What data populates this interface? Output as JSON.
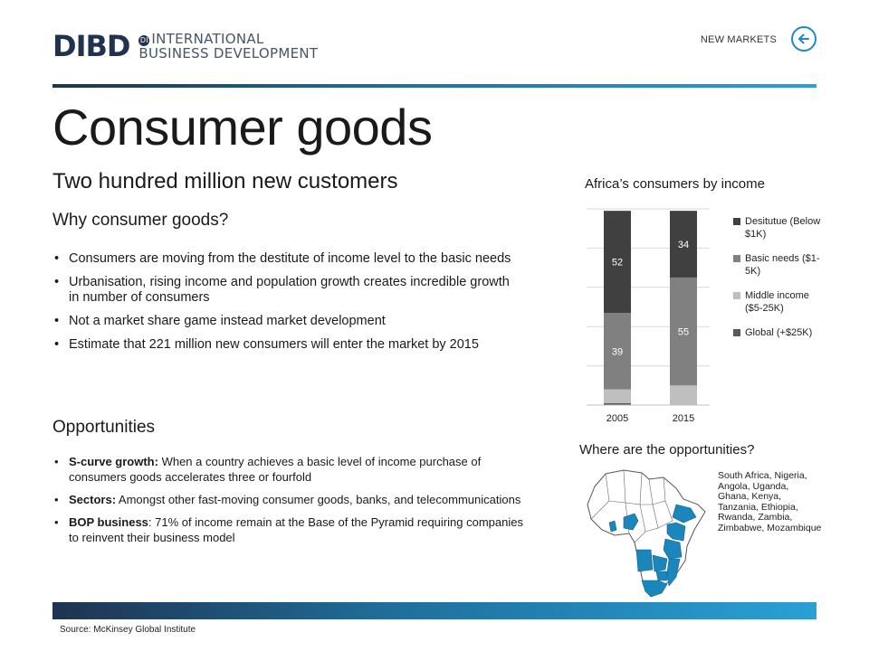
{
  "header": {
    "logo_mark": "DIBD",
    "logo_line1": "INTERNATIONAL",
    "logo_line2": "BUSINESS DEVELOPMENT",
    "logo_badge": "DI",
    "section": "NEW MARKETS",
    "back_icon": "arrow-left-circle-icon",
    "accent_color": "#1d8bc2"
  },
  "title": "Consumer goods",
  "subtitle": "Two hundred million new customers",
  "why": {
    "heading": "Why consumer goods?",
    "bullets": [
      "Consumers are moving from the destitute of income level to the basic needs",
      "Urbanisation, rising income and population growth creates incredible growth in number of consumers",
      "Not a market share game instead market development",
      "Estimate that 221 million new consumers will enter the market by 2015"
    ]
  },
  "opportunities": {
    "heading": "Opportunities",
    "items": [
      {
        "label": "S-curve growth:",
        "text": " When a country achieves a basic level of income purchase of consumers goods accelerates three or fourfold"
      },
      {
        "label": "Sectors:",
        "text": " Amongst other fast-moving consumer goods, banks, and telecommunications"
      },
      {
        "label": "BOP business",
        "text": ": 71% of income remain at the Base of the Pyramid requiring companies to reinvent their business model"
      }
    ]
  },
  "chart_data": {
    "type": "bar",
    "stacked": true,
    "title": "Africa’s consumers by income",
    "categories": [
      "2005",
      "2015"
    ],
    "series": [
      {
        "name": "Global (+$25K)",
        "values": [
          1,
          0
        ],
        "color": "#595959"
      },
      {
        "name": "Middle income ($5-25K)",
        "values": [
          7,
          10
        ],
        "color": "#bfbfbf"
      },
      {
        "name": "Basic needs ($1-5K)",
        "values": [
          39,
          55
        ],
        "color": "#808080",
        "label": true
      },
      {
        "name": "Desitutue (Below $1K)",
        "values": [
          52,
          34
        ],
        "color": "#404040",
        "label": true
      }
    ],
    "ylim": [
      0,
      100
    ],
    "grid": true,
    "legend_placement": "right",
    "legend_labels": [
      {
        "text": "Desitutue (Below $1K)",
        "color": "#404040"
      },
      {
        "text": "Basic needs ($1-5K)",
        "color": "#808080"
      },
      {
        "text": "Middle income ($5-25K)",
        "color": "#bfbfbf"
      },
      {
        "text": "Global (+$25K)",
        "color": "#595959"
      }
    ]
  },
  "map": {
    "title": "Where are the opportunities?",
    "countries": "South Africa, Nigeria, Angola, Uganda, Ghana, Kenya, Tanzania, Ethiopia, Rwanda, Zambia, Zimbabwe, Mozambique",
    "highlight_color": "#1a86bb"
  },
  "footer": {
    "source": "Source: McKinsey Global Institute"
  }
}
